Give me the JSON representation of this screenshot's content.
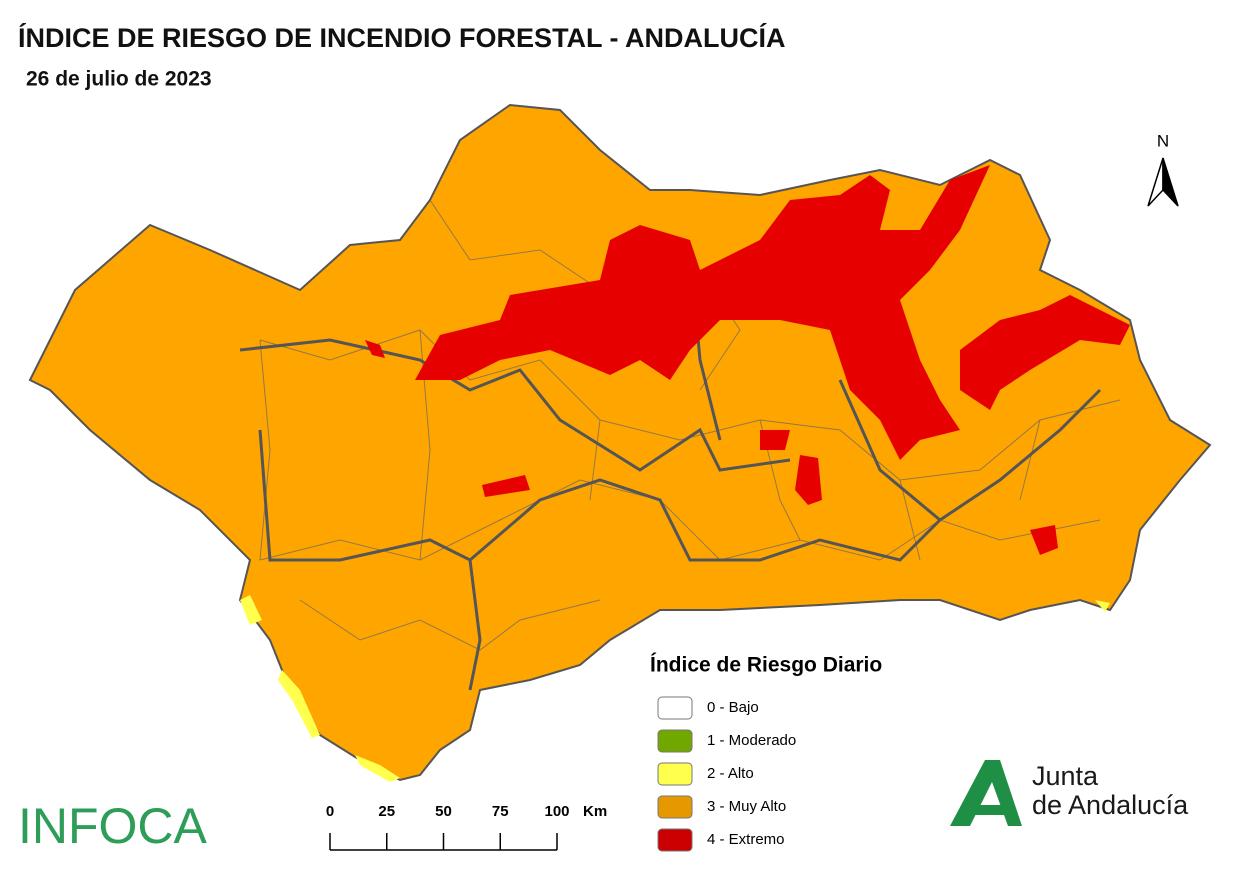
{
  "header": {
    "title": "ÍNDICE DE RIESGO DE INCENDIO FORESTAL - ANDALUCÍA",
    "date": "26 de julio de 2023"
  },
  "north": "N",
  "legend": {
    "title": "Índice de Riesgo Diario",
    "items": [
      {
        "label": "0 - Bajo",
        "color": "#ffffff"
      },
      {
        "label": "1 - Moderado",
        "color": "#70a800"
      },
      {
        "label": "2 - Alto",
        "color": "#ffff4d"
      },
      {
        "label": "3 - Muy Alto",
        "color": "#e69800"
      },
      {
        "label": "4 - Extremo",
        "color": "#cc0000"
      }
    ]
  },
  "scale_bar": {
    "ticks": [
      0,
      25,
      50,
      75,
      100
    ],
    "unit": "Km"
  },
  "logos": {
    "infoca": "INFOCA",
    "junta_line1": "Junta",
    "junta_line2": "de Andalucía"
  }
}
